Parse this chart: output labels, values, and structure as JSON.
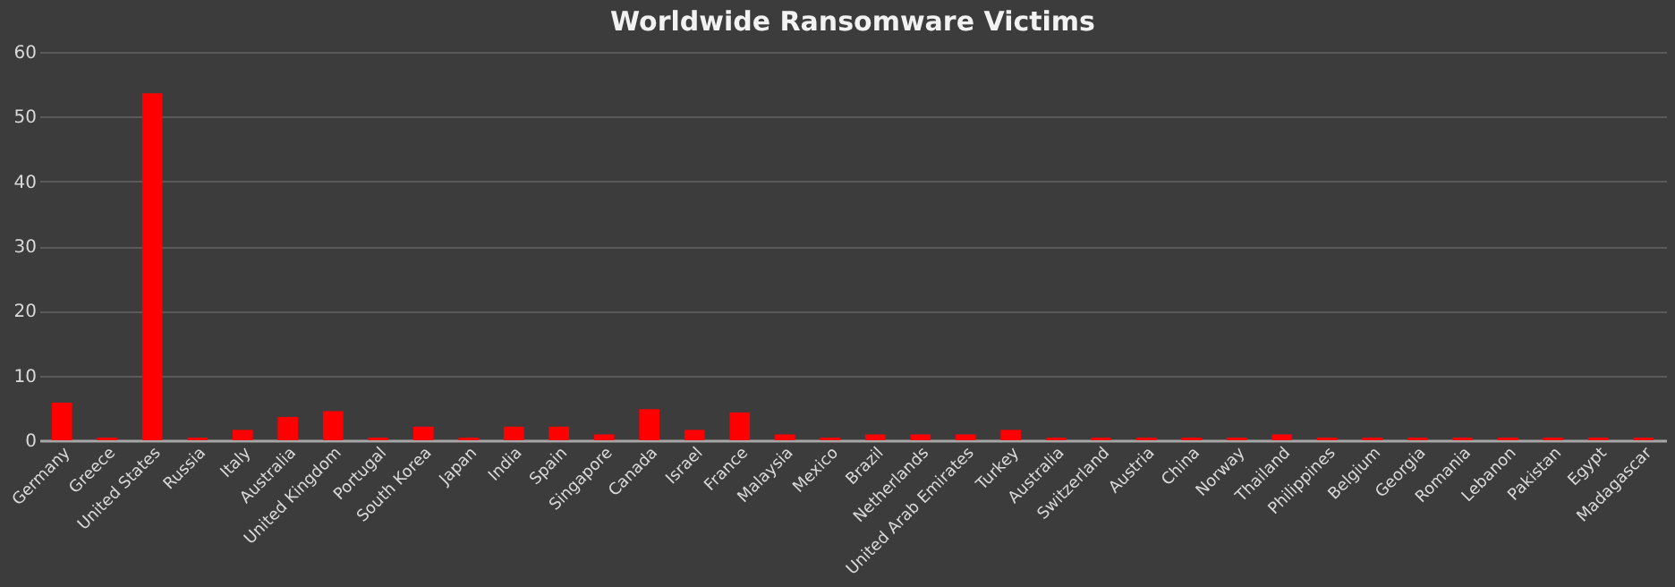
{
  "chart_data": {
    "type": "bar",
    "title": "Worldwide Ransomware Victims",
    "categories": [
      "Germany",
      "Greece",
      "United States",
      "Russia",
      "Italy",
      "Australia",
      "United Kingdom",
      "Portugal",
      "South Korea",
      "Japan",
      "India",
      "Spain",
      "Singapore",
      "Canada",
      "Israel",
      "France",
      "Malaysia",
      "Mexico",
      "Brazil",
      "Netherlands",
      "United Arab Emirates",
      "Turkey",
      "Australia",
      "Switzerland",
      "Austria",
      "China",
      "Norway",
      "Thailand",
      "Philippines",
      "Belgium",
      "Georgia",
      "Romania",
      "Lebanon",
      "Pakistan",
      "Egypt",
      "Madagascar"
    ],
    "values": [
      5.8,
      0.4,
      53.6,
      0.4,
      1.6,
      3.6,
      4.5,
      0.4,
      2.1,
      0.4,
      2.1,
      2.1,
      0.9,
      4.8,
      1.6,
      4.3,
      0.9,
      0.4,
      0.9,
      0.9,
      0.9,
      1.6,
      0.4,
      0.4,
      0.4,
      0.4,
      0.4,
      0.9,
      0.4,
      0.4,
      0.4,
      0.4,
      0.4,
      0.4,
      0.4,
      0.4
    ],
    "color": "#ff0000",
    "ylim": [
      0,
      60
    ],
    "yticks": [
      0,
      10,
      20,
      30,
      40,
      50,
      60
    ],
    "grid": "y"
  }
}
